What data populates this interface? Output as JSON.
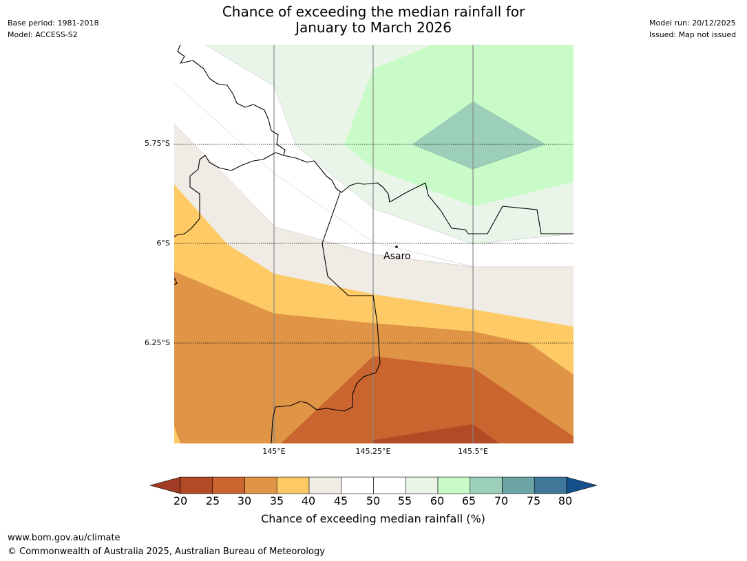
{
  "header": {
    "title_line1": "Chance of exceeding the median rainfall for",
    "title_line2": "January to March 2026",
    "base_period": "Base period: 1981-2018",
    "model": "Model: ACCESS-S2",
    "model_run": "Model run: 20/12/2025",
    "issued": "Issued: Map not issued"
  },
  "map": {
    "lat_labels": [
      "5.75°S",
      "6°S",
      "6.25°S"
    ],
    "lon_labels": [
      "145°E",
      "145.25°E",
      "145.5°E"
    ],
    "place": "Asaro"
  },
  "colorbar": {
    "ticks": [
      "20",
      "25",
      "30",
      "35",
      "40",
      "45",
      "50",
      "55",
      "60",
      "65",
      "70",
      "75",
      "80"
    ],
    "colors": [
      "#a23b24",
      "#b34a26",
      "#cb6530",
      "#e09446",
      "#fdca65",
      "#f0ebe5",
      "#ffffff",
      "#ffffff",
      "#eaf5e9",
      "#c9fbc9",
      "#9bcfb9",
      "#6da5a5",
      "#3f7799",
      "#16508a"
    ],
    "label": "Chance of exceeding median rainfall (%)"
  },
  "footer": {
    "url": "www.bom.gov.au/climate",
    "copyright": "© Commonwealth of Australia 2025, Australian Bureau of Meteorology"
  }
}
